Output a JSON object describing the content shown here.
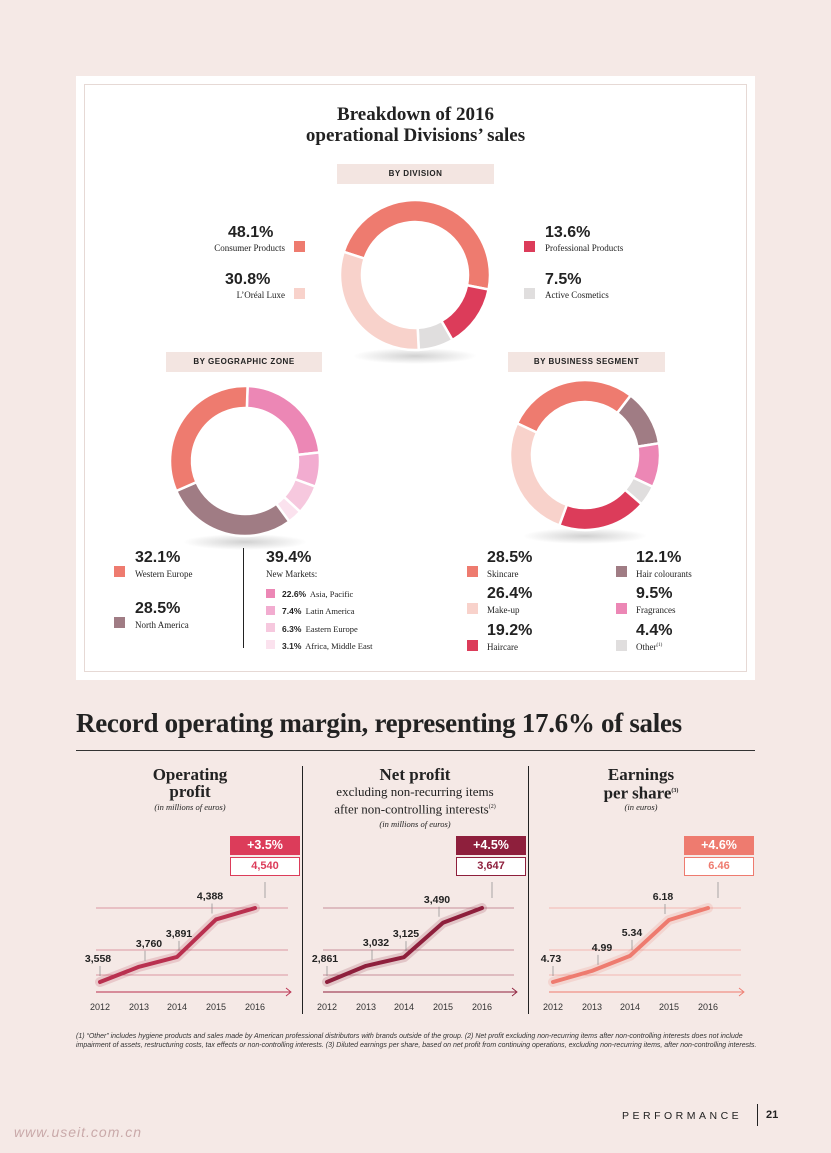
{
  "breakdown": {
    "title_line1": "Breakdown of 2016",
    "title_line2": "operational Divisions’ sales"
  },
  "colors": {
    "consumer": "#ee7b6f",
    "professional": "#dc3c5a",
    "luxe": "#f8d2cb",
    "active": "#e0dede",
    "western_europe": "#ee7b6f",
    "north_america": "#a07c84",
    "asia_pacific": "#ec87b5",
    "latin_america": "#f2acd0",
    "eastern_europe": "#f6c8de",
    "africa_me": "#fbe2ee",
    "skincare": "#ee7b6f",
    "makeup": "#f8d2cb",
    "haircare": "#dc3c5a",
    "hair_colourants": "#a07c84",
    "fragrances": "#ec87b5",
    "other": "#e0dede",
    "operating_line": "#b9304f",
    "net_line": "#8e1f3c",
    "eps_line": "#ee7b6f"
  },
  "chart_data": [
    {
      "type": "pie",
      "title": "BY DIVISION",
      "categories": [
        "Consumer Products",
        "Professional Products",
        "Active Cosmetics",
        "L’Oréal Luxe"
      ],
      "values": [
        48.1,
        13.6,
        7.5,
        30.8
      ],
      "labels": [
        "48.1%",
        "13.6%",
        "7.5%",
        "30.8%"
      ]
    },
    {
      "type": "pie",
      "title": "BY GEOGRAPHIC ZONE",
      "categories": [
        "Asia, Pacific",
        "Latin America",
        "Eastern Europe",
        "Africa, Middle East",
        "North America",
        "Western Europe"
      ],
      "values": [
        22.6,
        7.4,
        6.3,
        3.1,
        28.5,
        32.1
      ],
      "labels": [
        "22.6%",
        "7.4%",
        "6.3%",
        "3.1%",
        "28.5%",
        "32.1%"
      ],
      "group_label": "New Markets:",
      "group_value": "39.4%"
    },
    {
      "type": "pie",
      "title": "BY BUSINESS SEGMENT",
      "categories": [
        "Skincare",
        "Hair colourants",
        "Fragrances",
        "Other",
        "Haircare",
        "Make-up"
      ],
      "values": [
        28.5,
        12.1,
        9.5,
        4.4,
        19.2,
        26.4
      ],
      "labels": [
        "28.5%",
        "12.1%",
        "9.5%",
        "4.4%",
        "19.2%",
        "26.4%"
      ],
      "footnote_mark": "(1)"
    },
    {
      "type": "line",
      "title_line1": "Operating",
      "title_line2": "profit",
      "unit": "(in millions of euros)",
      "x": [
        "2012",
        "2013",
        "2014",
        "2015",
        "2016"
      ],
      "y": [
        3558,
        3760,
        3891,
        4388,
        4540
      ],
      "value_labels": [
        "3,558",
        "3,760",
        "3,891",
        "4,388",
        "4,540"
      ],
      "growth": "+3.5%"
    },
    {
      "type": "line",
      "title": "Net profit",
      "sub_line1": "excluding non-recurring items",
      "sub_line2": "after non-controlling interests",
      "sup": "(2)",
      "unit": "(in millions of euros)",
      "x": [
        "2012",
        "2013",
        "2014",
        "2015",
        "2016"
      ],
      "y": [
        2861,
        3032,
        3125,
        3490,
        3647
      ],
      "value_labels": [
        "2,861",
        "3,032",
        "3,125",
        "3,490",
        "3,647"
      ],
      "growth": "+4.5%"
    },
    {
      "type": "line",
      "title_line1": "Earnings",
      "title_line2": "per share",
      "sup": "(3)",
      "unit": "(in euros)",
      "x": [
        "2012",
        "2013",
        "2014",
        "2015",
        "2016"
      ],
      "y": [
        4.73,
        4.99,
        5.34,
        6.18,
        6.46
      ],
      "value_labels": [
        "4.73",
        "4.99",
        "5.34",
        "6.18",
        "6.46"
      ],
      "growth": "+4.6%"
    }
  ],
  "section": {
    "title": "Record operating margin, representing 17.6% of sales"
  },
  "footnote": "(1) “Other” includes hygiene products and sales made by American professional distributors with brands outside of the group. (2) Net profit excluding non-recurring items after non-controlling interests does not include impairment of assets, restructuring costs, tax effects or non-controlling interests. (3) Diluted earnings per share, based on net profit from continuing operations, excluding non-recurring items, after non-controlling interests.",
  "footer": {
    "label": "PERFORMANCE",
    "page": "21"
  },
  "watermark": "www.useit.com.cn"
}
